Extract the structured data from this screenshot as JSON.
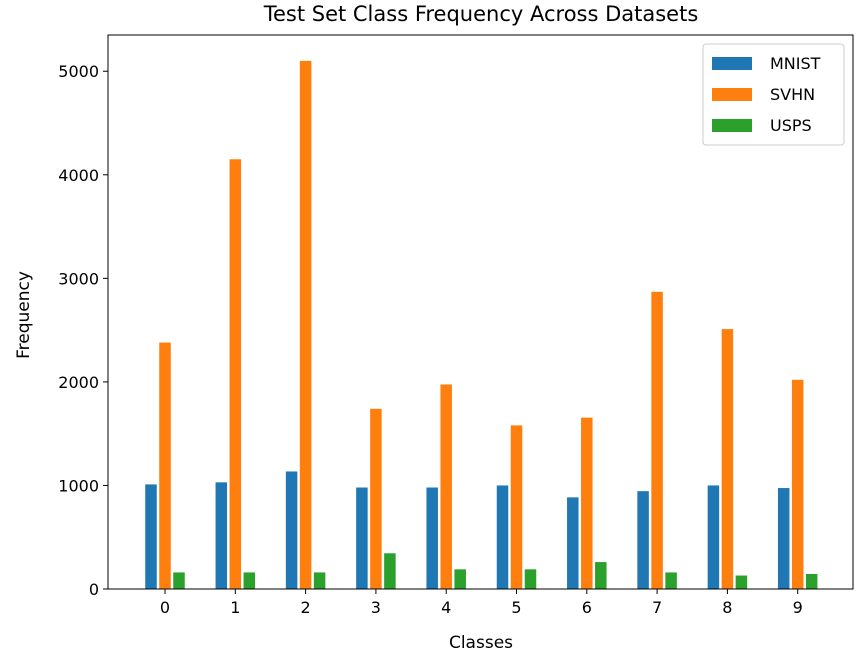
{
  "chart_data": {
    "type": "bar",
    "title": "Test Set Class Frequency Across Datasets",
    "xlabel": "Classes",
    "ylabel": "Frequency",
    "categories": [
      "0",
      "1",
      "2",
      "3",
      "4",
      "5",
      "6",
      "7",
      "8",
      "9"
    ],
    "ylim": [
      0,
      5350
    ],
    "yticks": [
      0,
      1000,
      2000,
      3000,
      4000,
      5000
    ],
    "ytick_labels": [
      "0",
      "1000",
      "2000",
      "3000",
      "4000",
      "5000"
    ],
    "legend_position": "top-right",
    "grid": false,
    "series": [
      {
        "name": "MNIST",
        "color": "#1f77b4",
        "values": [
          1010,
          1030,
          1135,
          980,
          980,
          1000,
          885,
          945,
          1000,
          975
        ]
      },
      {
        "name": "SVHN",
        "color": "#ff7f0e",
        "values": [
          2380,
          4150,
          5100,
          1740,
          1975,
          1580,
          1655,
          2870,
          2510,
          2020
        ]
      },
      {
        "name": "USPS",
        "color": "#2ca02c",
        "values": [
          160,
          160,
          160,
          345,
          190,
          190,
          260,
          160,
          130,
          145
        ]
      }
    ]
  }
}
